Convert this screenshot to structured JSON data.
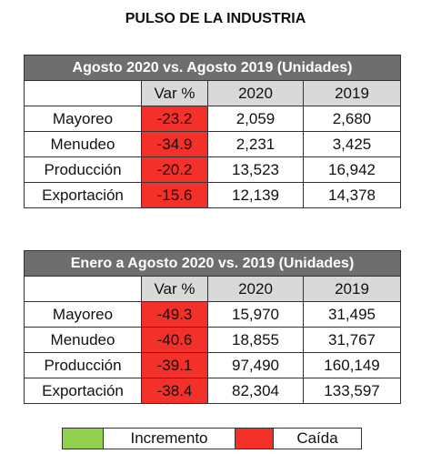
{
  "title": "PULSO DE LA INDUSTRIA",
  "tables": [
    {
      "title": "Agosto 2020 vs. Agosto 2019 (Unidades)",
      "columns": [
        "Var %",
        "2020",
        "2019"
      ],
      "rows": [
        [
          "Mayoreo",
          "-23.2",
          "2,059",
          "2,680"
        ],
        [
          "Menudeo",
          "-34.9",
          "2,231",
          "3,425"
        ],
        [
          "Producción",
          "-20.2",
          "13,523",
          "16,942"
        ],
        [
          "Exportación",
          "-15.6",
          "12,139",
          "14,378"
        ]
      ]
    },
    {
      "title": "Enero a Agosto 2020 vs. 2019 (Unidades)",
      "columns": [
        "Var %",
        "2020",
        "2019"
      ],
      "rows": [
        [
          "Mayoreo",
          "-49.3",
          "15,970",
          "31,495"
        ],
        [
          "Menudeo",
          "-40.6",
          "18,855",
          "31,767"
        ],
        [
          "Producción",
          "-39.1",
          "97,490",
          "160,149"
        ],
        [
          "Exportación",
          "-38.4",
          "82,304",
          "133,597"
        ]
      ]
    }
  ],
  "legend": [
    "Incremento",
    "Caída"
  ]
}
